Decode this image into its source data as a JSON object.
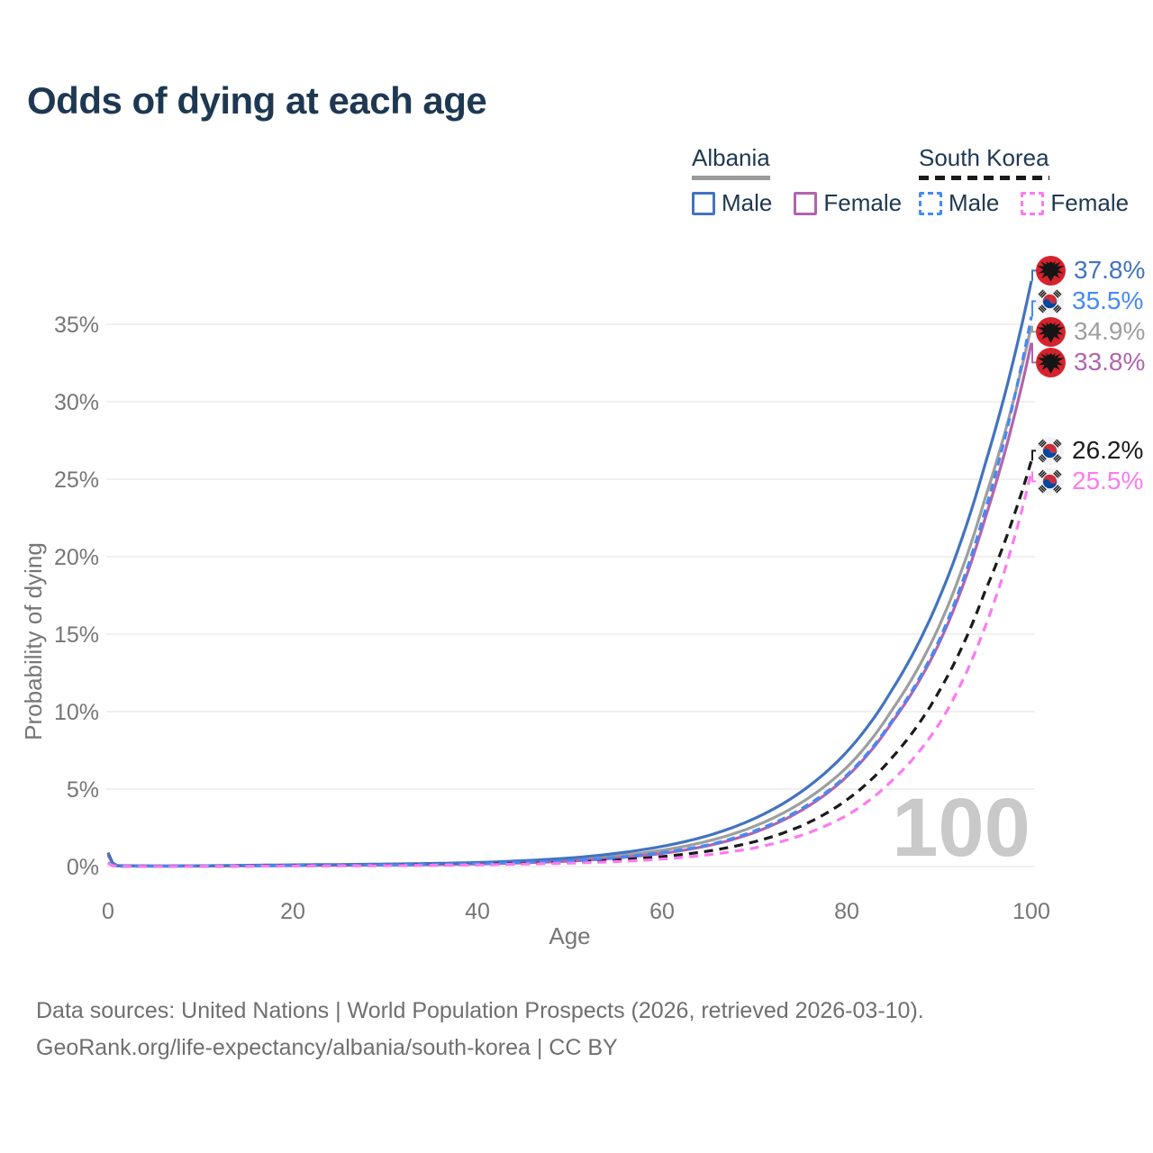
{
  "title": "Odds of dying at each age",
  "watermark": "100",
  "legend": {
    "groups": [
      {
        "label": "Albania",
        "underline_style": "solid",
        "underline_color": "#9a9a9a",
        "items": [
          {
            "label": "Male",
            "color": "#4273c0",
            "dashed": false
          },
          {
            "label": "Female",
            "color": "#b164ae",
            "dashed": false
          }
        ]
      },
      {
        "label": "South Korea",
        "underline_style": "dashed",
        "underline_color": "#1a1a1a",
        "items": [
          {
            "label": "Male",
            "color": "#4589f5",
            "dashed": true
          },
          {
            "label": "Female",
            "color": "#fb7bf0",
            "dashed": true
          }
        ]
      }
    ]
  },
  "footer": {
    "line1": "Data sources: United Nations | World Population Prospects (2026, retrieved 2026-03-10).",
    "line2": "GeoRank.org/life-expectancy/albania/south-korea | CC BY"
  },
  "chart_data": {
    "type": "line",
    "title": "Odds of dying at each age",
    "xlabel": "Age",
    "ylabel": "Probability of dying",
    "xlim": [
      0,
      100
    ],
    "ylim": [
      0,
      38.5
    ],
    "y_unit": "percent",
    "x_ticks": [
      0,
      20,
      40,
      60,
      80,
      100
    ],
    "y_ticks": [
      "0%",
      "5%",
      "10%",
      "15%",
      "20%",
      "25%",
      "30%",
      "35%"
    ],
    "grid": true,
    "legend_position": "top-right",
    "ages": [
      0,
      1,
      5,
      10,
      15,
      20,
      25,
      30,
      35,
      40,
      45,
      50,
      55,
      60,
      65,
      70,
      75,
      80,
      85,
      90,
      95,
      100
    ],
    "series": [
      {
        "name": "Albania Male",
        "country": "albania",
        "sex": "male",
        "color": "#4273c0",
        "dash": null,
        "end_label": "37.8%",
        "end_value_percent": 37.8,
        "values_percent": [
          0.9,
          0.06,
          0.04,
          0.05,
          0.08,
          0.11,
          0.13,
          0.16,
          0.2,
          0.26,
          0.38,
          0.55,
          0.85,
          1.3,
          2.0,
          3.1,
          4.8,
          7.4,
          11.5,
          17.3,
          26.0,
          37.8
        ]
      },
      {
        "name": "South Korea Male",
        "country": "south-korea",
        "sex": "male",
        "color": "#4589f5",
        "dash": "9 6",
        "end_label": "35.5%",
        "end_value_percent": 35.5,
        "values_percent": [
          0.25,
          0.02,
          0.015,
          0.02,
          0.04,
          0.06,
          0.08,
          0.1,
          0.13,
          0.18,
          0.26,
          0.38,
          0.58,
          0.9,
          1.4,
          2.3,
          3.7,
          5.9,
          9.5,
          14.6,
          23.0,
          35.5
        ]
      },
      {
        "name": "Albania Both sexes",
        "country": "albania",
        "sex": "all",
        "color": "#9e9e9e",
        "dash": null,
        "end_label": "34.9%",
        "end_value_percent": 34.9,
        "values_percent": [
          0.8,
          0.05,
          0.035,
          0.04,
          0.06,
          0.09,
          0.11,
          0.13,
          0.16,
          0.21,
          0.3,
          0.44,
          0.68,
          1.05,
          1.65,
          2.6,
          4.1,
          6.4,
          10.2,
          15.5,
          23.8,
          34.9
        ]
      },
      {
        "name": "Albania Female",
        "country": "albania",
        "sex": "female",
        "color": "#b164ae",
        "dash": null,
        "end_label": "33.8%",
        "end_value_percent": 33.8,
        "values_percent": [
          0.75,
          0.05,
          0.03,
          0.035,
          0.05,
          0.07,
          0.08,
          0.1,
          0.12,
          0.17,
          0.24,
          0.35,
          0.55,
          0.85,
          1.35,
          2.2,
          3.6,
          5.8,
          9.4,
          14.4,
          22.5,
          33.8
        ]
      },
      {
        "name": "South Korea Both sexes",
        "country": "south-korea",
        "sex": "all",
        "color": "#1a1a1a",
        "dash": "10 7",
        "end_label": "26.2%",
        "end_value_percent": 26.2,
        "values_percent": [
          0.22,
          0.018,
          0.013,
          0.017,
          0.03,
          0.05,
          0.06,
          0.08,
          0.1,
          0.14,
          0.2,
          0.28,
          0.42,
          0.64,
          1.0,
          1.6,
          2.6,
          4.3,
          7.1,
          11.3,
          17.8,
          26.2
        ]
      },
      {
        "name": "South Korea Female",
        "country": "south-korea",
        "sex": "female",
        "color": "#fb7bf0",
        "dash": "10 7",
        "end_label": "25.5%",
        "end_value_percent": 25.5,
        "values_percent": [
          0.2,
          0.016,
          0.012,
          0.015,
          0.025,
          0.035,
          0.045,
          0.06,
          0.08,
          0.11,
          0.16,
          0.22,
          0.32,
          0.48,
          0.76,
          1.2,
          2.0,
          3.3,
          5.6,
          9.2,
          15.5,
          25.5
        ]
      }
    ]
  }
}
